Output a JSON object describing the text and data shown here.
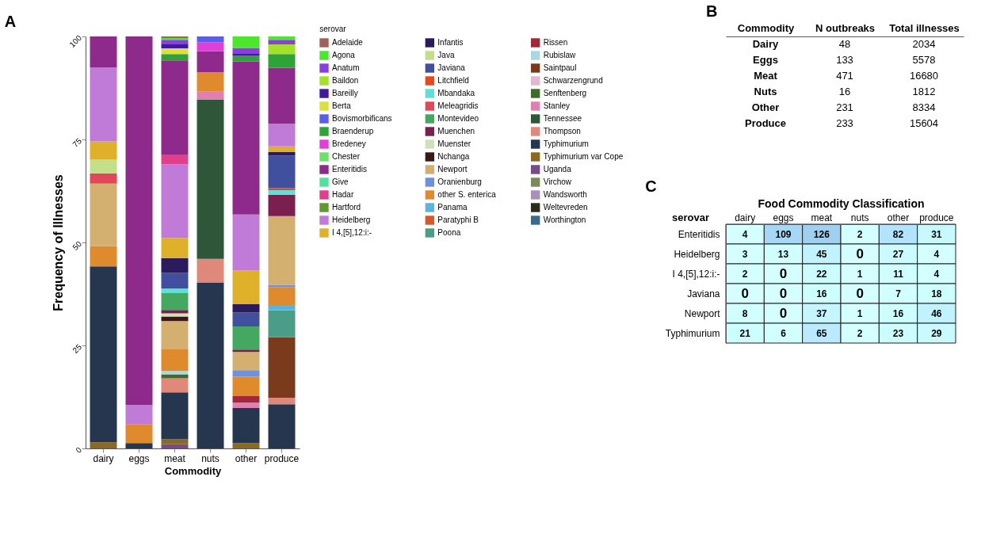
{
  "chart_data": [
    {
      "type": "bar",
      "title": "A",
      "xlabel": "Commodity",
      "ylabel": "Frequency of Illnesses",
      "legend_title": "serovar",
      "legend": "right",
      "stacked": true,
      "grid": false,
      "categories": [
        "dairy",
        "eggs",
        "meat",
        "nuts",
        "other",
        "produce"
      ],
      "ylim": [
        0,
        100
      ],
      "yticks": [
        0,
        25,
        50,
        75,
        100
      ],
      "series": [
        {
          "name": "Worthington",
          "color": "#3a6a8a",
          "values": [
            null,
            null,
            null,
            null,
            null,
            null
          ]
        },
        {
          "name": "Weltevreden",
          "color": "#2e2a1a",
          "values": [
            null,
            null,
            null,
            null,
            null,
            null
          ]
        },
        {
          "name": "Wandsworth",
          "color": "#a890b8",
          "values": [
            null,
            null,
            null,
            null,
            null,
            null
          ]
        },
        {
          "name": "Virchow",
          "color": "#7a8a5a",
          "values": [
            null,
            null,
            null,
            null,
            null,
            null
          ]
        },
        {
          "name": "Uganda",
          "color": "#7a4a8a",
          "values": [
            null,
            null,
            1.0,
            null,
            null,
            null
          ]
        },
        {
          "name": "Typhimurium var Cope",
          "color": "#8a6a20",
          "values": [
            1.5,
            null,
            1.2,
            null,
            1.3,
            null
          ]
        },
        {
          "name": "Typhimurium",
          "color": "#27364f",
          "values": [
            42.7,
            1.3,
            11.4,
            40.3,
            8.5,
            10.7
          ]
        },
        {
          "name": "Thompson",
          "color": "#e0887a",
          "values": [
            null,
            null,
            3.4,
            5.7,
            null,
            1.6
          ]
        },
        {
          "name": "Tennessee",
          "color": "#2e573a",
          "values": [
            null,
            null,
            null,
            38.7,
            null,
            null
          ]
        },
        {
          "name": "Stanley",
          "color": "#e080b0",
          "values": [
            null,
            null,
            null,
            1.9,
            1.3,
            null
          ]
        },
        {
          "name": "Senftenberg",
          "color": "#3e6a2a",
          "values": [
            null,
            null,
            1.0,
            null,
            null,
            null
          ]
        },
        {
          "name": "Schwarzengrund",
          "color": "#e0b8d0",
          "values": [
            null,
            null,
            null,
            null,
            null,
            null
          ]
        },
        {
          "name": "Saintpaul",
          "color": "#7a3a1c",
          "values": [
            null,
            null,
            null,
            null,
            null,
            14.7
          ]
        },
        {
          "name": "Rubislaw",
          "color": "#a8d8e0",
          "values": [
            null,
            null,
            0.8,
            null,
            null,
            null
          ]
        },
        {
          "name": "Rissen",
          "color": "#a0283a",
          "values": [
            null,
            null,
            null,
            null,
            1.6,
            null
          ]
        },
        {
          "name": "Poona",
          "color": "#4a9e88",
          "values": [
            null,
            null,
            null,
            null,
            null,
            6.5
          ]
        },
        {
          "name": "Paratyphi B",
          "color": "#d8582a",
          "values": [
            null,
            null,
            null,
            null,
            null,
            null
          ]
        },
        {
          "name": "Panama",
          "color": "#5ab4e0",
          "values": [
            null,
            null,
            null,
            null,
            null,
            1.3
          ]
        },
        {
          "name": "other S. enterica",
          "color": "#e08a2e",
          "values": [
            4.9,
            4.6,
            5.4,
            4.7,
            4.7,
            4.4
          ]
        },
        {
          "name": "Oranienburg",
          "color": "#6e90e0",
          "values": [
            null,
            null,
            null,
            null,
            1.6,
            0.5
          ]
        },
        {
          "name": "Newport",
          "color": "#d4b070",
          "values": [
            15.2,
            null,
            6.7,
            null,
            4.4,
            16.7
          ]
        },
        {
          "name": "Nchanga",
          "color": "#3a1818",
          "values": [
            null,
            null,
            1.1,
            null,
            null,
            null
          ]
        },
        {
          "name": "Muenster",
          "color": "#d0e0b8",
          "values": [
            null,
            null,
            0.8,
            null,
            null,
            null
          ]
        },
        {
          "name": "Muenchen",
          "color": "#7a1f4e",
          "values": [
            null,
            null,
            0.8,
            null,
            0.6,
            5.2
          ]
        },
        {
          "name": "Montevideo",
          "color": "#45a860",
          "values": [
            null,
            null,
            4.1,
            null,
            5.6,
            null
          ]
        },
        {
          "name": "Meleagridis",
          "color": "#e0485a",
          "values": [
            2.5,
            null,
            null,
            null,
            null,
            null
          ]
        },
        {
          "name": "Mbandaka",
          "color": "#5ee0d8",
          "values": [
            null,
            null,
            1.1,
            null,
            null,
            1.1
          ]
        },
        {
          "name": "Litchfield",
          "color": "#e8491c",
          "values": [
            null,
            null,
            null,
            null,
            null,
            0.5
          ]
        },
        {
          "name": "Javiana",
          "color": "#40509e",
          "values": [
            null,
            null,
            3.8,
            null,
            3.4,
            7.9
          ]
        },
        {
          "name": "Java",
          "color": "#c4df8a",
          "values": [
            3.3,
            null,
            null,
            null,
            null,
            null
          ]
        },
        {
          "name": "Infantis",
          "color": "#2a1a5e",
          "values": [
            null,
            null,
            3.6,
            null,
            2.0,
            0.8
          ]
        },
        {
          "name": "I 4,[5],12:i:-",
          "color": "#dfb02a",
          "values": [
            4.4,
            null,
            4.9,
            null,
            8.2,
            1.4
          ]
        },
        {
          "name": "Heidelberg",
          "color": "#c07ad8",
          "values": [
            18.0,
            4.7,
            17.9,
            null,
            13.6,
            5.5
          ]
        },
        {
          "name": "Hartford",
          "color": "#5f9a2e",
          "values": [
            null,
            null,
            null,
            null,
            null,
            null
          ]
        },
        {
          "name": "Hadar",
          "color": "#e0408a",
          "values": [
            null,
            null,
            2.2,
            null,
            null,
            null
          ]
        },
        {
          "name": "Give",
          "color": "#52dfa0",
          "values": [
            null,
            null,
            null,
            null,
            null,
            null
          ]
        },
        {
          "name": "Enteritidis",
          "color": "#8e2a8c",
          "values": [
            7.5,
            89.4,
            23.0,
            5.1,
            37.1,
            13.6
          ]
        },
        {
          "name": "Chester",
          "color": "#6de06a",
          "values": [
            null,
            null,
            null,
            null,
            null,
            null
          ]
        },
        {
          "name": "Bredeney",
          "color": "#e03fd8",
          "values": [
            null,
            null,
            null,
            2.2,
            null,
            null
          ]
        },
        {
          "name": "Braenderup",
          "color": "#2ea336",
          "values": [
            null,
            null,
            1.5,
            null,
            1.4,
            3.3
          ]
        },
        {
          "name": "Bovismorbificans",
          "color": "#5b5ee8",
          "values": [
            null,
            null,
            null,
            1.4,
            null,
            null
          ]
        },
        {
          "name": "Berta",
          "color": "#dbe03a",
          "values": [
            null,
            null,
            1.4,
            null,
            null,
            null
          ]
        },
        {
          "name": "Bareilly",
          "color": "#3f1aa0",
          "values": [
            null,
            null,
            1.1,
            null,
            0.6,
            null
          ]
        },
        {
          "name": "Baildon",
          "color": "#a4e22a",
          "values": [
            null,
            null,
            null,
            null,
            null,
            2.4
          ]
        },
        {
          "name": "Anatum",
          "color": "#8a3ee0",
          "values": [
            null,
            null,
            1.0,
            null,
            1.3,
            1.1
          ]
        },
        {
          "name": "Agona",
          "color": "#4ce62d",
          "values": [
            null,
            null,
            0.4,
            null,
            2.8,
            0.8
          ]
        },
        {
          "name": "Adelaide",
          "color": "#a0615a",
          "values": [
            null,
            null,
            0.4,
            null,
            null,
            null
          ]
        }
      ]
    },
    {
      "type": "other",
      "title": "B",
      "xlabel": "Commodity",
      "data_labels": true,
      "categories": [
        "Dairy",
        "Eggs",
        "Meat",
        "Nuts",
        "Other",
        "Produce"
      ],
      "series": [
        {
          "name": "N outbreaks",
          "values": [
            48,
            133,
            471,
            16,
            231,
            233
          ]
        },
        {
          "name": "Total illnesses",
          "values": [
            2034,
            5578,
            16680,
            1812,
            8334,
            15604
          ]
        }
      ]
    },
    {
      "type": "heatmap",
      "title": "C",
      "xlabel": "Food Commodity Classification",
      "ylabel": "serovar",
      "data_labels": true,
      "categories": [
        "dairy",
        "eggs",
        "meat",
        "nuts",
        "other",
        "produce"
      ],
      "y_categories": [
        "Enteritidis",
        "Heidelberg",
        "I 4,[5],12:i:-",
        "Javiana",
        "Newport",
        "Typhimurium"
      ],
      "cells": [
        [
          4,
          109,
          126,
          2,
          82,
          31
        ],
        [
          3,
          13,
          45,
          0,
          27,
          4
        ],
        [
          2,
          0,
          22,
          1,
          11,
          4
        ],
        [
          0,
          0,
          16,
          0,
          7,
          18
        ],
        [
          8,
          0,
          37,
          1,
          16,
          46
        ],
        [
          21,
          6,
          65,
          2,
          23,
          29
        ]
      ]
    }
  ]
}
